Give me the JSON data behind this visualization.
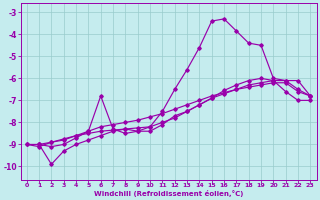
{
  "xlabel": "Windchill (Refroidissement éolien,°C)",
  "bg_color": "#c5ecee",
  "line_color": "#9900aa",
  "grid_color": "#99cccc",
  "xlim": [
    -0.5,
    23.5
  ],
  "ylim": [
    -10.6,
    -2.6
  ],
  "xticks": [
    0,
    1,
    2,
    3,
    4,
    5,
    6,
    7,
    8,
    9,
    10,
    11,
    12,
    13,
    14,
    15,
    16,
    17,
    18,
    19,
    20,
    21,
    22,
    23
  ],
  "yticks": [
    -10,
    -9,
    -8,
    -7,
    -6,
    -5,
    -4,
    -3
  ],
  "line_main_x": [
    1,
    2,
    3,
    4,
    5,
    6,
    7,
    8,
    9,
    10,
    11,
    12,
    13,
    14,
    15,
    16,
    17,
    18,
    19,
    20,
    21,
    22,
    23
  ],
  "line_main_y": [
    -9.0,
    -9.1,
    -9.0,
    -8.7,
    -8.4,
    -6.8,
    -8.3,
    -8.5,
    -8.4,
    -8.2,
    -7.5,
    -6.5,
    -5.6,
    -4.6,
    -3.4,
    -3.3,
    -3.85,
    -4.4,
    -4.5,
    -6.0,
    -6.1,
    -6.1,
    -6.8
  ],
  "line_diag1_x": [
    0,
    1,
    2,
    3,
    4,
    5,
    6,
    7,
    8,
    9,
    10,
    11,
    12,
    13,
    14,
    15,
    16,
    17,
    18,
    19,
    20,
    21,
    22,
    23
  ],
  "line_diag1_y": [
    -9.0,
    -9.0,
    -8.9,
    -8.75,
    -8.6,
    -8.5,
    -8.4,
    -8.35,
    -8.3,
    -8.25,
    -8.2,
    -8.0,
    -7.8,
    -7.5,
    -7.2,
    -6.9,
    -6.7,
    -6.5,
    -6.3,
    -6.2,
    -6.1,
    -6.1,
    -6.5,
    -6.8
  ],
  "line_diag2_x": [
    0,
    1,
    2,
    3,
    4,
    5,
    6,
    7,
    8,
    9,
    10,
    11,
    12,
    13,
    14,
    15,
    16,
    17,
    18,
    19,
    20,
    21,
    22,
    23
  ],
  "line_diag2_y": [
    -9.0,
    -9.1,
    -8.9,
    -8.8,
    -8.6,
    -8.4,
    -8.2,
    -8.1,
    -8.0,
    -7.9,
    -7.75,
    -7.6,
    -7.4,
    -7.2,
    -7.0,
    -6.8,
    -6.65,
    -6.5,
    -6.4,
    -6.3,
    -6.2,
    -6.2,
    -6.6,
    -6.8
  ],
  "line_low_x": [
    1,
    2,
    3,
    4,
    5,
    6,
    7,
    8,
    9,
    10,
    11,
    12,
    13,
    14,
    15,
    16,
    17,
    18,
    19,
    20,
    21,
    22,
    23
  ],
  "line_low_y": [
    -9.0,
    -9.9,
    -9.3,
    -9.0,
    -8.8,
    -8.6,
    -8.4,
    -8.3,
    -8.4,
    -8.4,
    -8.1,
    -7.7,
    -7.5,
    -7.2,
    -6.9,
    -6.55,
    -6.3,
    -6.1,
    -6.0,
    -6.1,
    -6.6,
    -7.0,
    -7.0
  ]
}
